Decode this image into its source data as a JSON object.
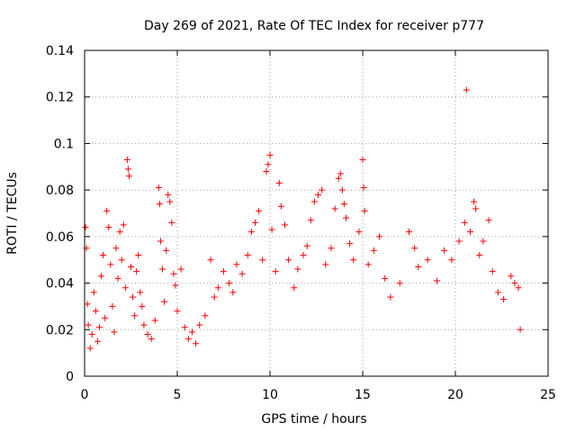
{
  "chart_data": {
    "type": "scatter",
    "title": "Day 269 of 2021, Rate Of TEC Index for receiver p777",
    "xlabel": "GPS time / hours",
    "ylabel": "ROTI / TECUs",
    "xlim": [
      0,
      25
    ],
    "ylim": [
      0,
      0.14
    ],
    "x_ticks": [
      0,
      5,
      10,
      15,
      20,
      25
    ],
    "x_tick_labels": [
      "0",
      "5",
      "10",
      "15",
      "20",
      "25"
    ],
    "y_ticks": [
      0,
      0.02,
      0.04,
      0.06,
      0.08,
      0.1,
      0.12,
      0.14
    ],
    "y_tick_labels": [
      "0",
      "0.02",
      "0.04",
      "0.06",
      "0.08",
      "0.1",
      "0.12",
      "0.14"
    ],
    "grid": true,
    "marker": "plus",
    "color": "#ff0000",
    "points": [
      [
        0.05,
        0.064
      ],
      [
        0.1,
        0.055
      ],
      [
        0.15,
        0.031
      ],
      [
        0.2,
        0.022
      ],
      [
        0.3,
        0.012
      ],
      [
        0.4,
        0.018
      ],
      [
        0.5,
        0.036
      ],
      [
        0.6,
        0.028
      ],
      [
        0.7,
        0.015
      ],
      [
        0.8,
        0.021
      ],
      [
        0.9,
        0.043
      ],
      [
        1.0,
        0.052
      ],
      [
        1.1,
        0.025
      ],
      [
        1.2,
        0.071
      ],
      [
        1.3,
        0.064
      ],
      [
        1.4,
        0.048
      ],
      [
        1.5,
        0.03
      ],
      [
        1.6,
        0.019
      ],
      [
        1.7,
        0.055
      ],
      [
        1.8,
        0.042
      ],
      [
        1.9,
        0.062
      ],
      [
        2.0,
        0.05
      ],
      [
        2.1,
        0.065
      ],
      [
        2.2,
        0.038
      ],
      [
        2.3,
        0.093
      ],
      [
        2.35,
        0.089
      ],
      [
        2.4,
        0.086
      ],
      [
        2.5,
        0.047
      ],
      [
        2.6,
        0.034
      ],
      [
        2.7,
        0.026
      ],
      [
        2.8,
        0.045
      ],
      [
        2.9,
        0.052
      ],
      [
        3.0,
        0.036
      ],
      [
        3.1,
        0.03
      ],
      [
        3.2,
        0.022
      ],
      [
        3.4,
        0.018
      ],
      [
        3.6,
        0.016
      ],
      [
        3.8,
        0.024
      ],
      [
        4.0,
        0.081
      ],
      [
        4.05,
        0.074
      ],
      [
        4.1,
        0.058
      ],
      [
        4.2,
        0.046
      ],
      [
        4.3,
        0.032
      ],
      [
        4.4,
        0.054
      ],
      [
        4.5,
        0.078
      ],
      [
        4.6,
        0.075
      ],
      [
        4.7,
        0.066
      ],
      [
        4.8,
        0.044
      ],
      [
        4.9,
        0.039
      ],
      [
        5.0,
        0.028
      ],
      [
        5.2,
        0.046
      ],
      [
        5.4,
        0.021
      ],
      [
        5.6,
        0.016
      ],
      [
        5.8,
        0.019
      ],
      [
        6.0,
        0.014
      ],
      [
        6.2,
        0.022
      ],
      [
        6.5,
        0.026
      ],
      [
        6.8,
        0.05
      ],
      [
        7.0,
        0.034
      ],
      [
        7.2,
        0.038
      ],
      [
        7.5,
        0.045
      ],
      [
        7.8,
        0.04
      ],
      [
        8.0,
        0.036
      ],
      [
        8.2,
        0.048
      ],
      [
        8.5,
        0.044
      ],
      [
        8.8,
        0.052
      ],
      [
        9.0,
        0.062
      ],
      [
        9.2,
        0.066
      ],
      [
        9.4,
        0.071
      ],
      [
        9.6,
        0.05
      ],
      [
        9.8,
        0.088
      ],
      [
        9.9,
        0.091
      ],
      [
        10.0,
        0.095
      ],
      [
        10.1,
        0.063
      ],
      [
        10.3,
        0.045
      ],
      [
        10.5,
        0.083
      ],
      [
        10.6,
        0.073
      ],
      [
        10.8,
        0.065
      ],
      [
        11.0,
        0.05
      ],
      [
        11.3,
        0.038
      ],
      [
        11.5,
        0.046
      ],
      [
        11.8,
        0.052
      ],
      [
        12.0,
        0.056
      ],
      [
        12.2,
        0.067
      ],
      [
        12.4,
        0.075
      ],
      [
        12.6,
        0.078
      ],
      [
        12.8,
        0.08
      ],
      [
        13.0,
        0.048
      ],
      [
        13.3,
        0.055
      ],
      [
        13.5,
        0.072
      ],
      [
        13.7,
        0.085
      ],
      [
        13.8,
        0.087
      ],
      [
        13.9,
        0.08
      ],
      [
        14.0,
        0.074
      ],
      [
        14.1,
        0.068
      ],
      [
        14.3,
        0.057
      ],
      [
        14.5,
        0.05
      ],
      [
        14.8,
        0.062
      ],
      [
        15.0,
        0.093
      ],
      [
        15.05,
        0.081
      ],
      [
        15.1,
        0.071
      ],
      [
        15.3,
        0.048
      ],
      [
        15.6,
        0.054
      ],
      [
        15.9,
        0.06
      ],
      [
        16.2,
        0.042
      ],
      [
        16.5,
        0.034
      ],
      [
        17.0,
        0.04
      ],
      [
        17.5,
        0.062
      ],
      [
        17.8,
        0.055
      ],
      [
        18.0,
        0.047
      ],
      [
        18.5,
        0.05
      ],
      [
        19.0,
        0.041
      ],
      [
        19.4,
        0.054
      ],
      [
        19.8,
        0.05
      ],
      [
        20.2,
        0.058
      ],
      [
        20.5,
        0.066
      ],
      [
        20.6,
        0.123
      ],
      [
        20.8,
        0.062
      ],
      [
        21.0,
        0.075
      ],
      [
        21.1,
        0.072
      ],
      [
        21.3,
        0.052
      ],
      [
        21.5,
        0.058
      ],
      [
        21.8,
        0.067
      ],
      [
        22.0,
        0.045
      ],
      [
        22.3,
        0.036
      ],
      [
        22.6,
        0.033
      ],
      [
        23.0,
        0.043
      ],
      [
        23.2,
        0.04
      ],
      [
        23.4,
        0.038
      ],
      [
        23.5,
        0.02
      ]
    ]
  }
}
